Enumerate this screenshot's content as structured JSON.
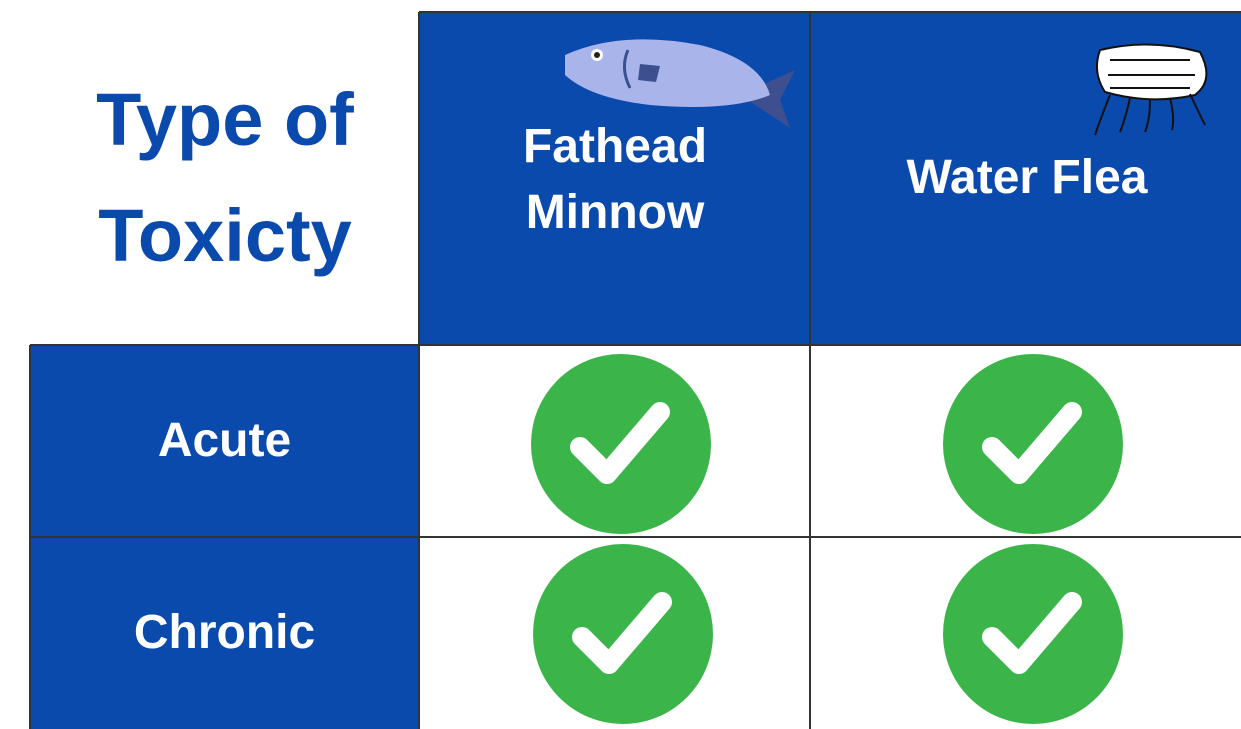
{
  "table": {
    "corner_title": "Type of Toxicty",
    "columns": [
      "Fathead Minnow",
      "Water Flea"
    ],
    "rows": [
      "Acute",
      "Chronic"
    ]
  }
}
